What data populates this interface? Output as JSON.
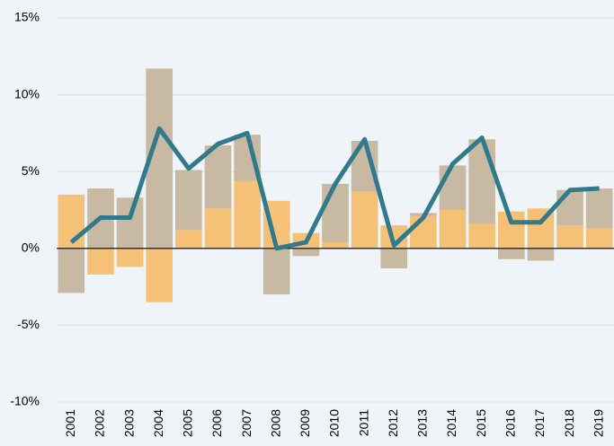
{
  "chart_data": {
    "type": "bar",
    "stacked": true,
    "categories": [
      "2001",
      "2002",
      "2003",
      "2004",
      "2005",
      "2006",
      "2007",
      "2008",
      "2009",
      "2010",
      "2011",
      "2012",
      "2013",
      "2014",
      "2015",
      "2016",
      "2017",
      "2018",
      "2019"
    ],
    "series": [
      {
        "color": "#f5c177",
        "values": [
          3.5,
          -1.7,
          -1.2,
          -3.5,
          1.2,
          2.6,
          4.4,
          3.1,
          1.0,
          0.4,
          3.7,
          1.5,
          2.1,
          2.5,
          1.6,
          2.4,
          2.6,
          1.5,
          1.3
        ]
      },
      {
        "color": "#c8b9a2",
        "values": [
          -2.9,
          3.9,
          3.3,
          11.7,
          3.9,
          4.1,
          3.0,
          -3.0,
          -0.5,
          3.8,
          3.3,
          -1.3,
          0.2,
          2.9,
          5.5,
          -0.7,
          -0.8,
          2.3,
          2.6
        ]
      }
    ],
    "line": {
      "color": "#317a8c",
      "values": [
        0.4,
        2.0,
        2.0,
        7.8,
        5.2,
        6.8,
        7.5,
        0.0,
        0.4,
        4.2,
        7.1,
        0.2,
        2.0,
        5.5,
        7.2,
        1.7,
        1.7,
        3.8,
        3.9
      ]
    },
    "ylim": [
      -10,
      15
    ],
    "yticks": [
      {
        "value": -10,
        "label": "-10%"
      },
      {
        "value": -5,
        "label": "-5%"
      },
      {
        "value": 0,
        "label": "0%"
      },
      {
        "value": 5,
        "label": "5%"
      },
      {
        "value": 10,
        "label": "10%"
      },
      {
        "value": 15,
        "label": "15%"
      }
    ],
    "grid": true
  }
}
